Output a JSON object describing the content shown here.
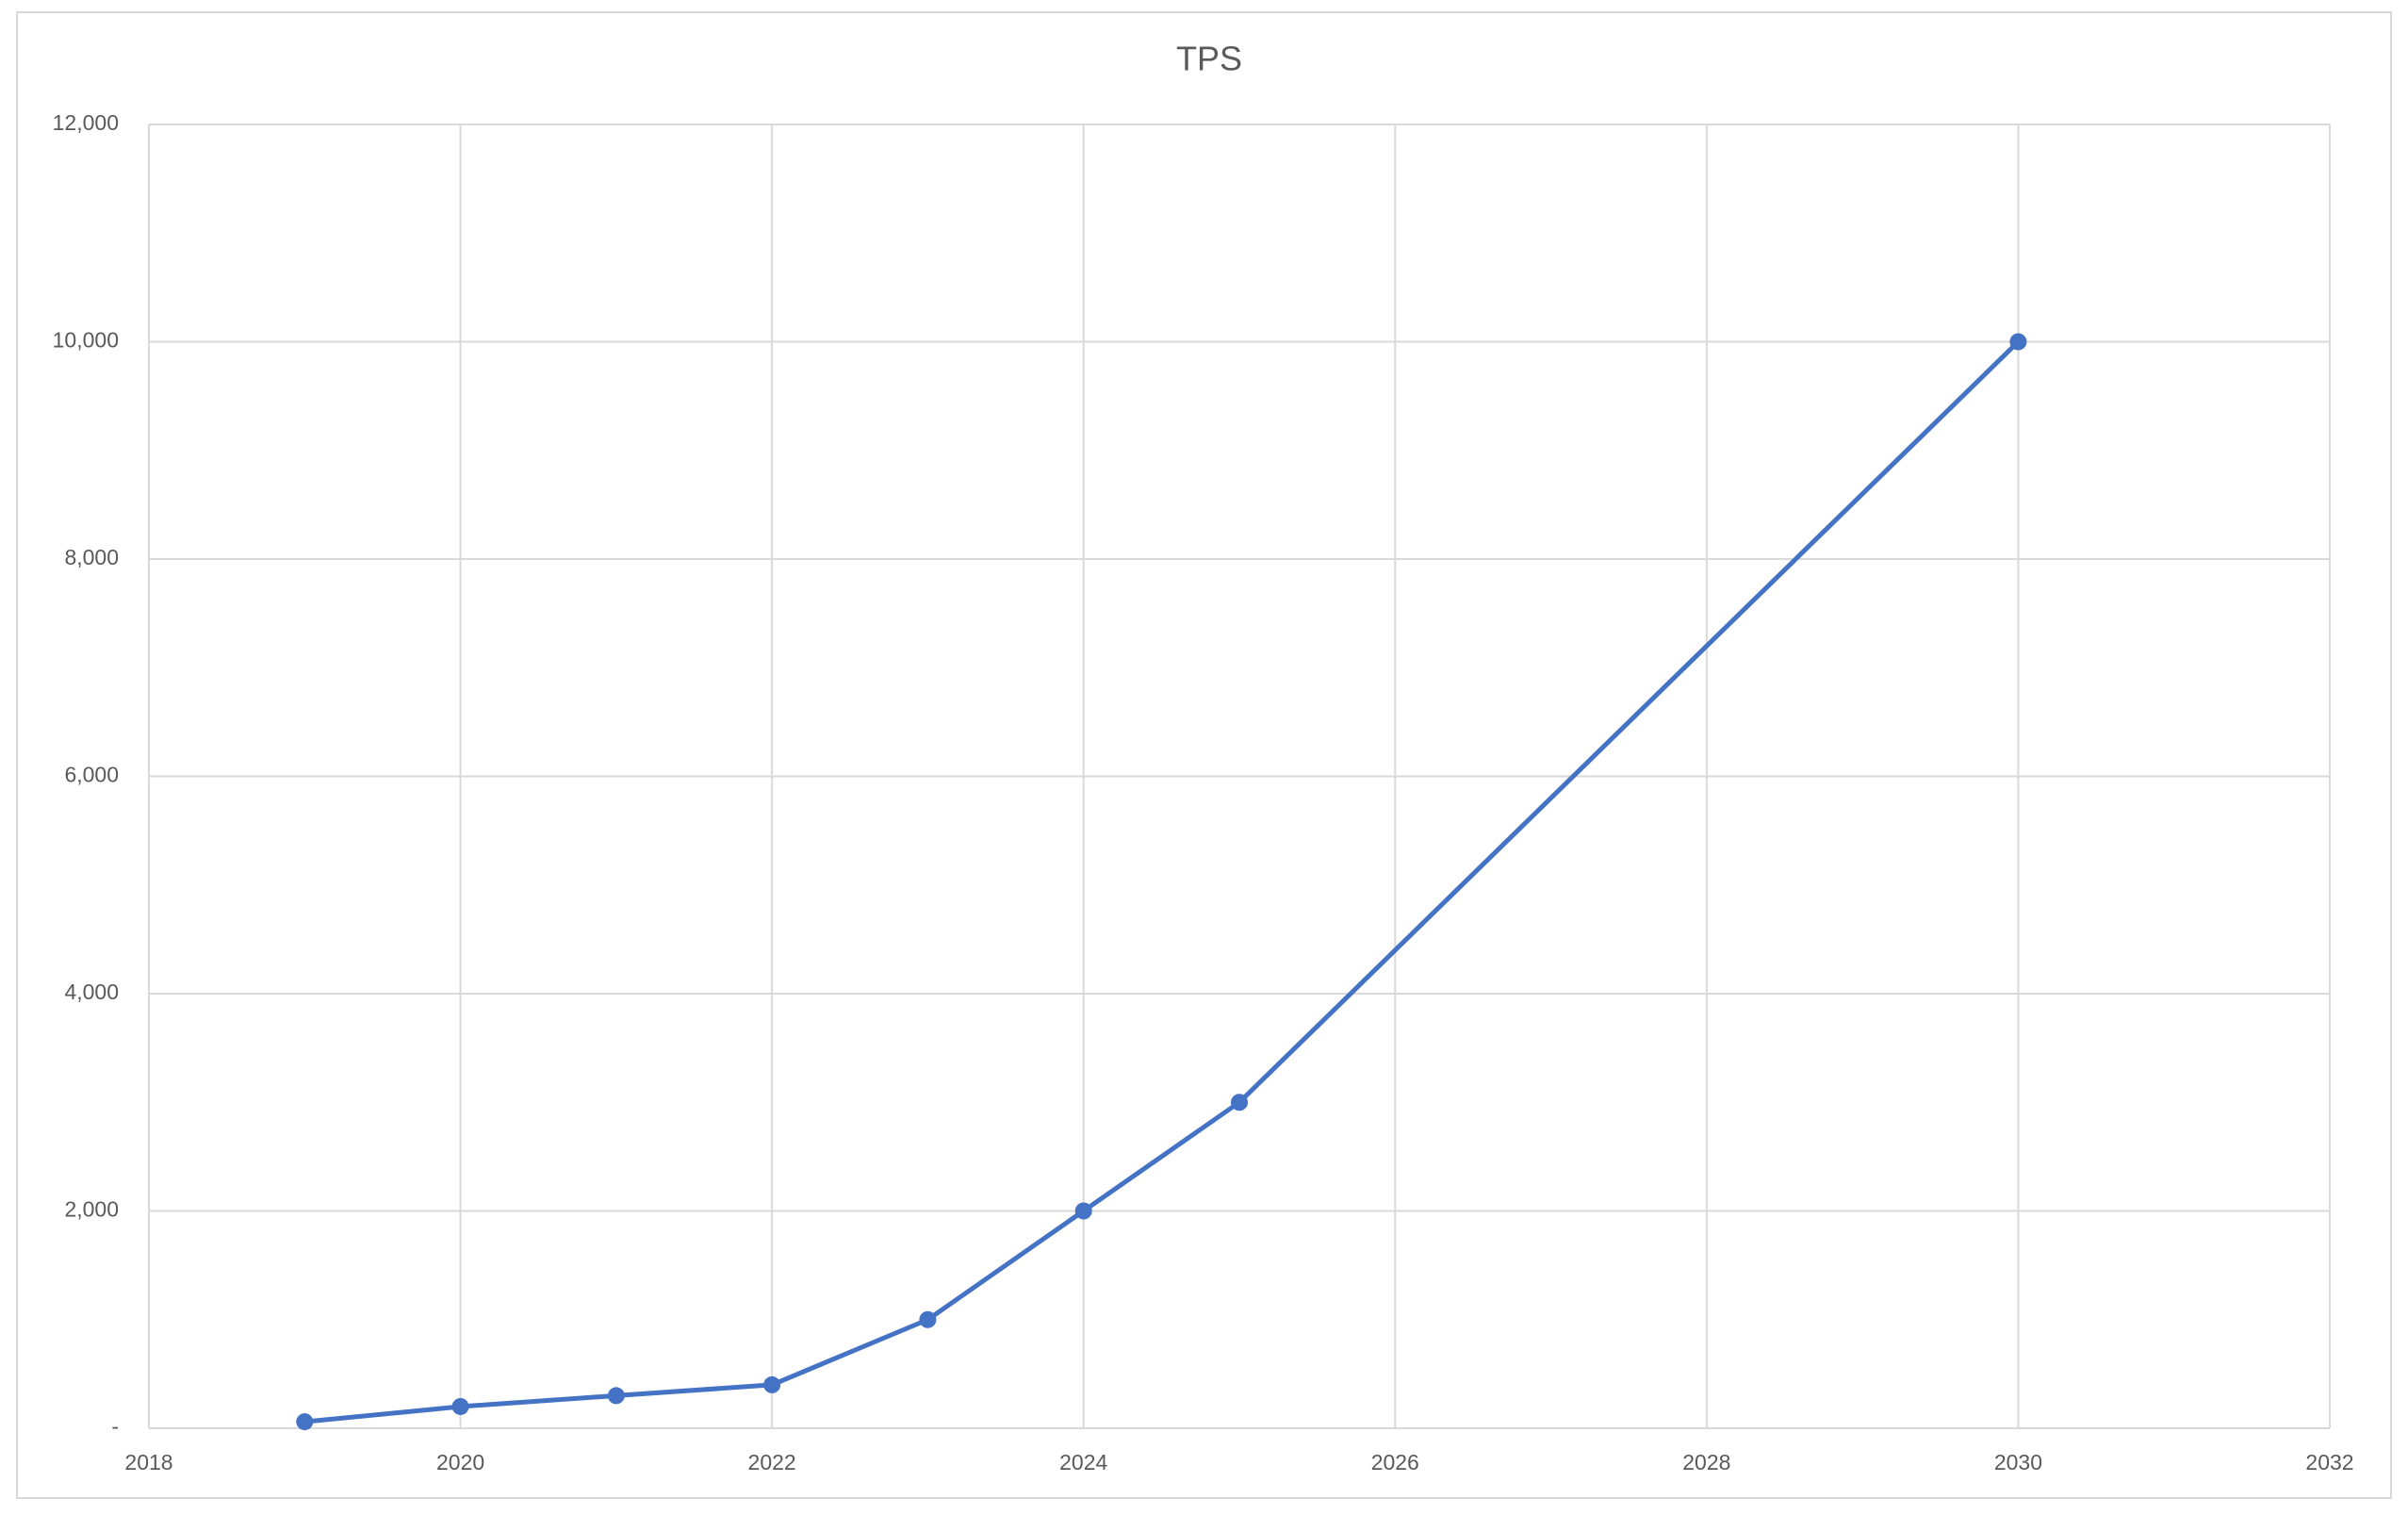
{
  "chart_data": {
    "type": "line",
    "title": "TPS",
    "x": [
      2019,
      2020,
      2021,
      2022,
      2023,
      2024,
      2025,
      2030
    ],
    "values": [
      60,
      200,
      300,
      400,
      1000,
      2000,
      3000,
      10000
    ],
    "color": "#4472c4",
    "xlim": [
      2018,
      2032
    ],
    "xticks": [
      2018,
      2020,
      2022,
      2024,
      2026,
      2028,
      2030,
      2032
    ],
    "ylim": [
      0,
      12000
    ],
    "yticks": [
      {
        "value": 0,
        "label": "-"
      },
      {
        "value": 2000,
        "label": "2,000"
      },
      {
        "value": 4000,
        "label": "4,000"
      },
      {
        "value": 6000,
        "label": "6,000"
      },
      {
        "value": 8000,
        "label": "8,000"
      },
      {
        "value": 10000,
        "label": "10,000"
      },
      {
        "value": 12000,
        "label": "12,000"
      }
    ],
    "grid": true
  }
}
